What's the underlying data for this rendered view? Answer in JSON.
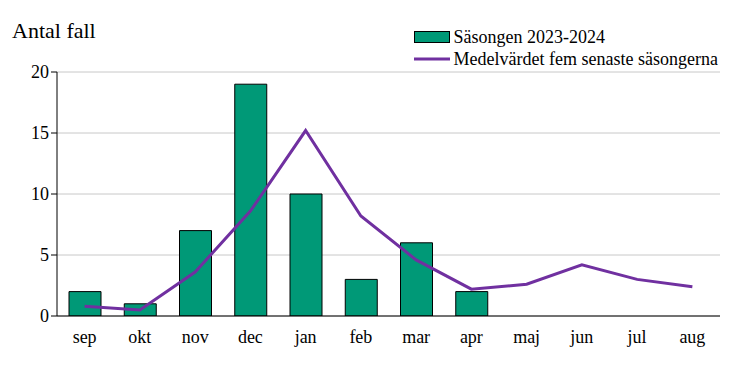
{
  "chart_data": {
    "type": "bar",
    "ylabel": "Antal fall",
    "categories": [
      "sep",
      "okt",
      "nov",
      "dec",
      "jan",
      "feb",
      "mar",
      "apr",
      "maj",
      "jun",
      "jul",
      "aug"
    ],
    "series": [
      {
        "name": "Säsongen 2023-2024",
        "type": "bar",
        "color": "#009977",
        "values": [
          2,
          1,
          7,
          19,
          10,
          3,
          6,
          2,
          null,
          null,
          null,
          null
        ]
      },
      {
        "name": "Medelvärdet fem senaste säsongerna",
        "type": "line",
        "color": "#7030a0",
        "values": [
          0.8,
          0.5,
          3.6,
          8.6,
          15.2,
          8.2,
          4.6,
          2.2,
          2.6,
          4.2,
          3.0,
          2.4
        ]
      }
    ],
    "ylim": [
      0,
      20
    ],
    "yticks": [
      0,
      5,
      10,
      15,
      20
    ],
    "grid": true,
    "legend": "top right"
  }
}
